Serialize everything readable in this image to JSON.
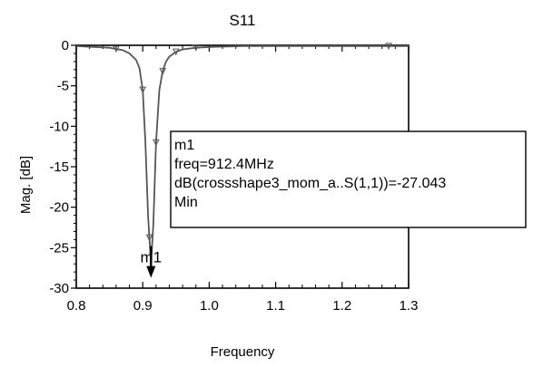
{
  "chart_data": {
    "type": "line",
    "title": "S11",
    "xlabel": "Frequency",
    "ylabel": "Mag. [dB]",
    "xlim": [
      0.8,
      1.3
    ],
    "ylim": [
      -30,
      0
    ],
    "x_ticks": [
      0.8,
      0.9,
      1.0,
      1.1,
      1.2,
      1.3
    ],
    "x_tick_labels": [
      "0.8",
      "0.9",
      "1.0",
      "1.1",
      "1.2",
      "1.3"
    ],
    "y_ticks": [
      0,
      -5,
      -10,
      -15,
      -20,
      -25,
      -30
    ],
    "y_tick_labels": [
      "0",
      "-5",
      "-10",
      "-15",
      "-20",
      "-25",
      "-30"
    ],
    "grid": false,
    "series": [
      {
        "x": [
          0.8,
          0.85,
          0.87,
          0.88,
          0.89,
          0.895,
          0.9,
          0.904,
          0.908,
          0.9124,
          0.916,
          0.92,
          0.925,
          0.93,
          0.935,
          0.94,
          0.95,
          0.96,
          0.98,
          1.0,
          1.05,
          1.1,
          1.2,
          1.3
        ],
        "values": [
          -0.1,
          -0.3,
          -0.6,
          -1.0,
          -1.8,
          -2.8,
          -5.5,
          -12.0,
          -21.0,
          -27.043,
          -22.0,
          -12.0,
          -5.5,
          -3.2,
          -2.0,
          -1.4,
          -0.8,
          -0.5,
          -0.3,
          -0.2,
          -0.1,
          -0.1,
          -0.1,
          -0.1
        ]
      }
    ],
    "symbol_x": [
      0.86,
      0.9,
      0.91,
      0.92,
      0.93,
      0.95,
      0.98,
      1.27
    ],
    "marker": {
      "name": "m1",
      "x": 0.9124,
      "y": -27.043,
      "label_lines": [
        "m1",
        "freq=912.4MHz",
        "dB(crossshape3_mom_a..S(1,1))=-27.043",
        "Min"
      ]
    }
  }
}
